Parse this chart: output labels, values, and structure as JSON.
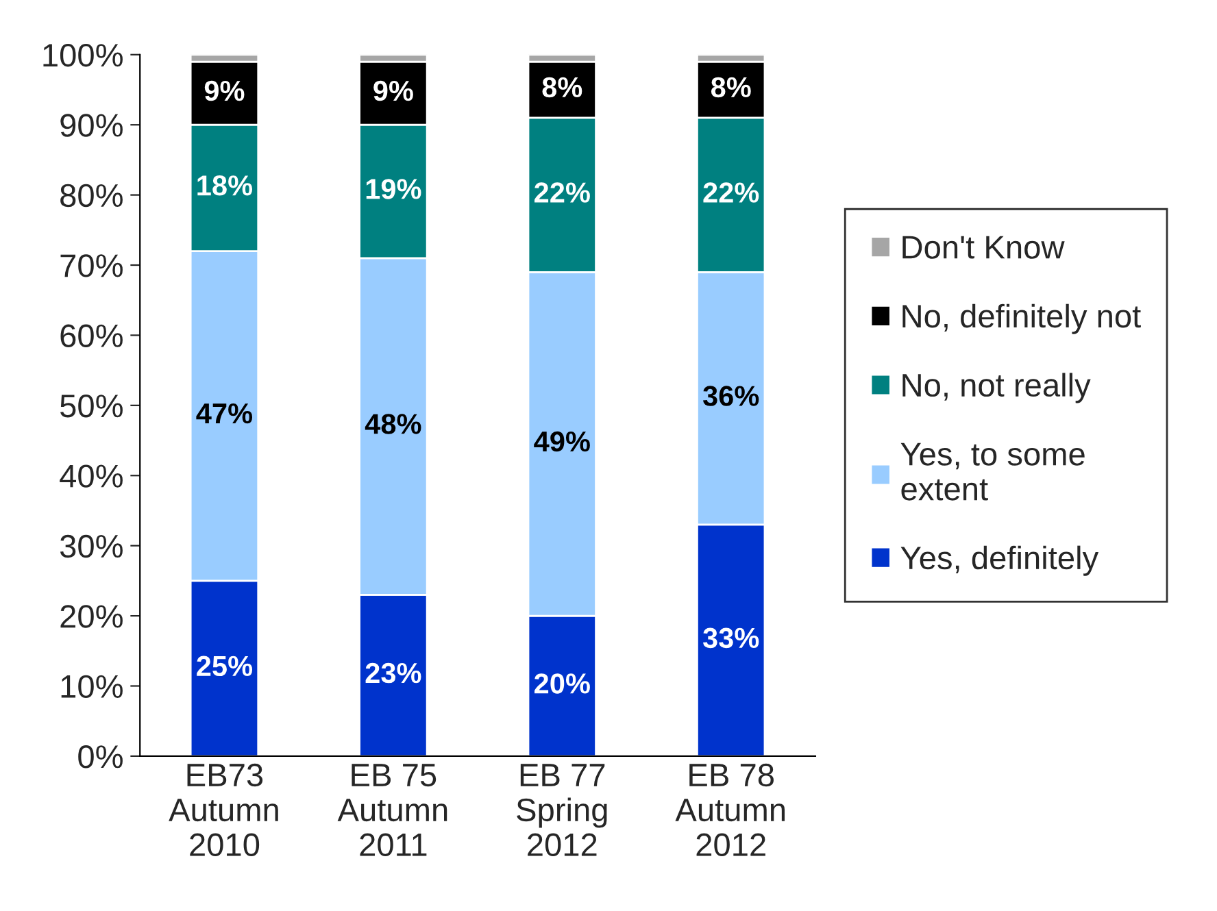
{
  "chart_data": {
    "type": "bar",
    "stacked": true,
    "categories": [
      "EB73\nAutumn\n2010",
      "EB 75\nAutumn\n2011",
      "EB 77\nSpring\n2012",
      "EB 78\nAutumn\n2012"
    ],
    "series": [
      {
        "name": "Yes, definitely",
        "color": "#0033cc",
        "values": [
          25,
          23,
          20,
          33
        ],
        "value_labels": [
          "25%",
          "23%",
          "20%",
          "33%"
        ]
      },
      {
        "name": "Yes, to some\nextent",
        "color": "#99ccff",
        "values": [
          47,
          48,
          49,
          36
        ],
        "value_labels": [
          "47%",
          "48%",
          "49%",
          "36%"
        ]
      },
      {
        "name": "No, not really",
        "color": "#008080",
        "values": [
          18,
          19,
          22,
          22
        ],
        "value_labels": [
          "18%",
          "19%",
          "22%",
          "22%"
        ]
      },
      {
        "name": "No, definitely not",
        "color": "#000000",
        "values": [
          9,
          9,
          8,
          8
        ],
        "value_labels": [
          "9%",
          "9%",
          "8%",
          "8%"
        ]
      },
      {
        "name": "Don't Know",
        "color": "#a6a6a6",
        "values": [
          1,
          1,
          1,
          1
        ]
      }
    ],
    "ylim": [
      0,
      100
    ],
    "yticks": [
      {
        "value": 0,
        "label": "0%"
      },
      {
        "value": 10,
        "label": "10%"
      },
      {
        "value": 20,
        "label": "20%"
      },
      {
        "value": 30,
        "label": "30%"
      },
      {
        "value": 40,
        "label": "40%"
      },
      {
        "value": 50,
        "label": "50%"
      },
      {
        "value": 60,
        "label": "60%"
      },
      {
        "value": 70,
        "label": "70%"
      },
      {
        "value": 80,
        "label": "80%"
      },
      {
        "value": 90,
        "label": "90%"
      },
      {
        "value": 100,
        "label": "100%"
      }
    ],
    "grid": false,
    "legend": "right"
  }
}
